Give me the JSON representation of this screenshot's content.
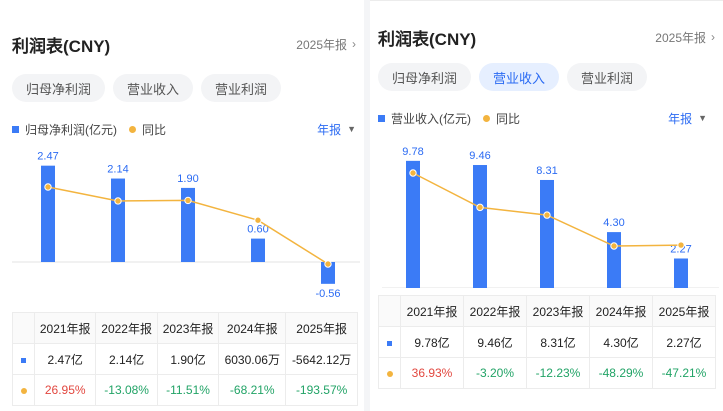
{
  "left": {
    "title": "利润表(CNY)",
    "year_link": "2025年报",
    "tabs": [
      "归母净利润",
      "营业收入",
      "营业利润"
    ],
    "active_tab": 0,
    "legend_bar": "归母净利润(亿元)",
    "legend_line": "同比",
    "period": "年报",
    "table": {
      "headers": [
        "2021年报",
        "2022年报",
        "2023年报",
        "2024年报",
        "2025年报"
      ],
      "values": [
        "2.47亿",
        "2.14亿",
        "1.90亿",
        "6030.06万",
        "-5642.12万"
      ],
      "growth": [
        "26.95%",
        "-13.08%",
        "-11.51%",
        "-68.21%",
        "-193.57%"
      ]
    }
  },
  "right": {
    "title": "利润表(CNY)",
    "year_link": "2025年报",
    "tabs": [
      "归母净利润",
      "营业收入",
      "营业利润"
    ],
    "active_tab": 1,
    "legend_bar": "营业收入(亿元)",
    "legend_line": "同比",
    "period": "年报",
    "table": {
      "headers": [
        "2021年报",
        "2022年报",
        "2023年报",
        "2024年报",
        "2025年报"
      ],
      "values": [
        "9.78亿",
        "9.46亿",
        "8.31亿",
        "4.30亿",
        "2.27亿"
      ],
      "growth": [
        "36.93%",
        "-3.20%",
        "-12.23%",
        "-48.29%",
        "-47.21%"
      ]
    }
  },
  "colors": {
    "bar": "#3b7bf6",
    "line": "#f3b43f",
    "positive": "#e2473f",
    "negative": "#21a366",
    "accent": "#2b6bf3"
  },
  "icons": {
    "year_link": "chevron-right-icon",
    "period": "caret-down-icon"
  },
  "chart_data": [
    {
      "type": "bar",
      "categories": [
        "2021年报",
        "2022年报",
        "2023年报",
        "2024年报",
        "2025年报"
      ],
      "series": [
        {
          "name": "归母净利润(亿元)",
          "values": [
            2.47,
            2.14,
            1.9,
            0.6,
            -0.56
          ],
          "labels": [
            "2.47",
            "2.14",
            "1.90",
            "0.60",
            "-0.56"
          ]
        },
        {
          "name": "同比",
          "type": "line",
          "values": [
            26.95,
            -13.08,
            -11.51,
            -68.21,
            -193.57
          ]
        }
      ]
    },
    {
      "type": "bar",
      "categories": [
        "2021年报",
        "2022年报",
        "2023年报",
        "2024年报",
        "2025年报"
      ],
      "series": [
        {
          "name": "营业收入(亿元)",
          "values": [
            9.78,
            9.46,
            8.31,
            4.3,
            2.27
          ],
          "labels": [
            "9.78",
            "9.46",
            "8.31",
            "4.30",
            "2.27"
          ]
        },
        {
          "name": "同比",
          "type": "line",
          "values": [
            36.93,
            -3.2,
            -12.23,
            -48.29,
            -47.21
          ]
        }
      ]
    }
  ]
}
